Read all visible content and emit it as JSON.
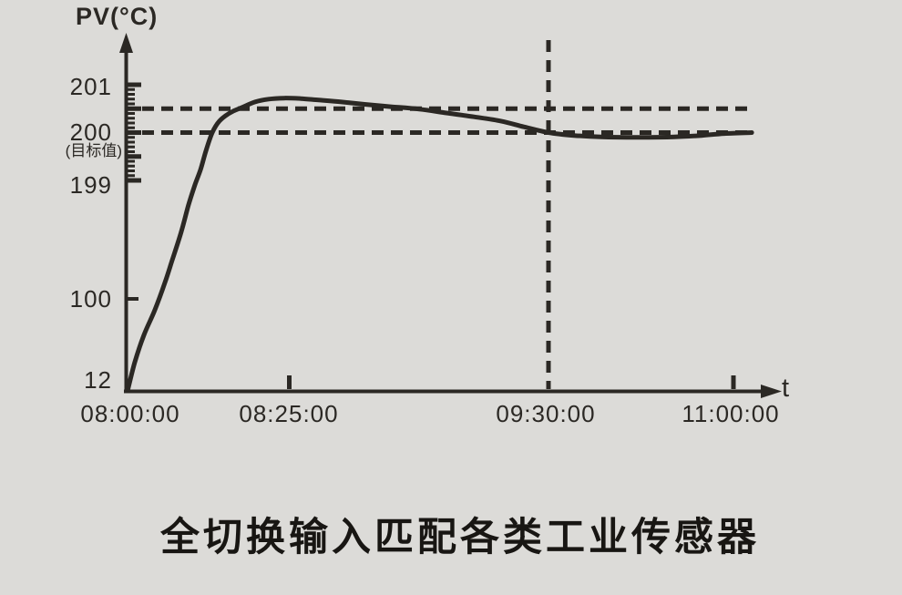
{
  "page": {
    "background": "#dcdbd8",
    "ink": "#2b2824"
  },
  "labels": {
    "y_axis_title": "PV(°C)",
    "x_axis_title": "t",
    "target_note": "(目标值)"
  },
  "caption": {
    "text": "全切换输入匹配各类工业传感器"
  },
  "chart_data": {
    "type": "line",
    "title": "",
    "ylabel": "PV(°C)",
    "xlabel": "t",
    "y_scale_note": "broken nonlinear y axis: 12 → 100 → fine ruler 199–201 (0.1°C minor, 0.5°C major graduations)",
    "target_value": 200,
    "y_ticks": [
      {
        "label": "201",
        "value": 201
      },
      {
        "label": "200",
        "value": 200
      },
      {
        "label": "199",
        "value": 199
      },
      {
        "label": "100",
        "value": 100
      },
      {
        "label": "12",
        "value": 12
      }
    ],
    "x_ticks": [
      {
        "label": "08:00:00",
        "minutes": 0,
        "tick": false
      },
      {
        "label": "08:25:00",
        "minutes": 25,
        "tick": true
      },
      {
        "label": "09:30:00",
        "minutes": 90,
        "tick": false
      },
      {
        "label": "11:00:00",
        "minutes": 180,
        "tick": true
      }
    ],
    "fine_scale": {
      "from": 199,
      "to": 201,
      "minor_step": 0.1,
      "major_step": 0.5
    },
    "single_y_ticks": [
      100
    ],
    "reference_lines": {
      "horizontal_values": [
        200.5,
        200
      ],
      "vertical_minutes": [
        90
      ]
    },
    "series": [
      {
        "name": "PV",
        "points": [
          [
            0,
            12
          ],
          [
            1.1,
            39
          ],
          [
            2.5,
            65
          ],
          [
            4.2,
            89
          ],
          [
            5.8,
            114
          ],
          [
            7.0,
            134
          ],
          [
            8.3,
            156
          ],
          [
            9.4,
            178
          ],
          [
            10.4,
            195
          ],
          [
            11.3,
            199.23
          ],
          [
            12.1,
            199.61
          ],
          [
            13.1,
            200.0
          ],
          [
            14.2,
            200.24
          ],
          [
            15.8,
            200.41
          ],
          [
            17.6,
            200.52
          ],
          [
            19.7,
            200.64
          ],
          [
            21.8,
            200.7
          ],
          [
            24.2,
            200.72
          ],
          [
            27.9,
            200.71
          ],
          [
            32.4,
            200.68
          ],
          [
            38.1,
            200.64
          ],
          [
            43.9,
            200.59
          ],
          [
            50.7,
            200.54
          ],
          [
            57.6,
            200.49
          ],
          [
            64.4,
            200.41
          ],
          [
            71.3,
            200.33
          ],
          [
            78.1,
            200.24
          ],
          [
            83.8,
            200.12
          ],
          [
            90,
            200.0
          ],
          [
            102.4,
            199.94
          ],
          [
            115.7,
            199.91
          ],
          [
            133.4,
            199.9
          ],
          [
            151.2,
            199.91
          ],
          [
            164.5,
            199.94
          ],
          [
            175.6,
            199.98
          ],
          [
            188.9,
            200.0
          ]
        ]
      }
    ]
  }
}
